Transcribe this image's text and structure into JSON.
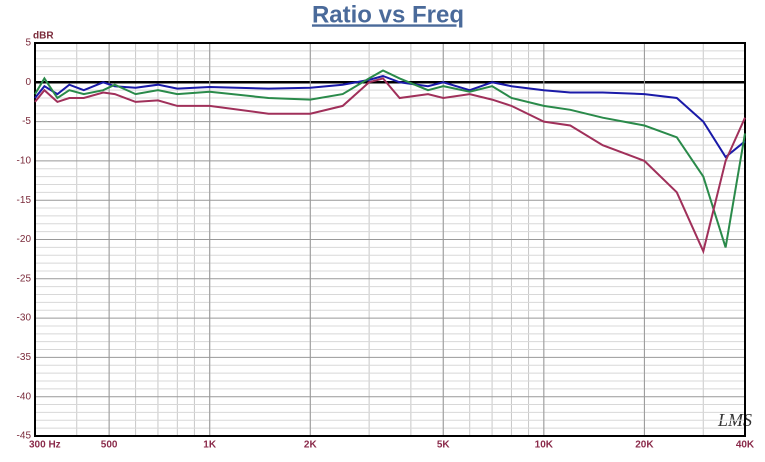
{
  "chart_data": {
    "type": "line",
    "title": "Ratio vs Freq",
    "y_label": "dBR",
    "watermark": "LMS",
    "log_x": true,
    "grid": true,
    "minor_grid": true,
    "xlim": [
      300,
      40000
    ],
    "ylim": [
      -45,
      5
    ],
    "xticks": [
      {
        "value": 300,
        "label": "300 Hz"
      },
      500,
      {
        "value": 1000,
        "label": "1K"
      },
      {
        "value": 2000,
        "label": "2K"
      },
      {
        "value": 5000,
        "label": "5K"
      },
      {
        "value": 10000,
        "label": "10K"
      },
      {
        "value": 20000,
        "label": "20K"
      },
      {
        "value": 40000,
        "label": "40K"
      }
    ],
    "yticks": [
      5,
      0,
      -5,
      -10,
      -15,
      -20,
      -25,
      -30,
      -35,
      -40,
      -45
    ],
    "x": [
      300,
      320,
      350,
      380,
      420,
      480,
      520,
      600,
      700,
      800,
      1000,
      1500,
      2000,
      2500,
      3000,
      3300,
      3700,
      4500,
      5000,
      6000,
      7000,
      8000,
      10000,
      12000,
      15000,
      20000,
      25000,
      30000,
      35000,
      40000
    ],
    "series": [
      {
        "color": "#1a1aa8",
        "values": [
          -2,
          -0.5,
          -1.5,
          -0.3,
          -1,
          0,
          -0.5,
          -0.7,
          -0.3,
          -0.8,
          -0.6,
          -0.8,
          -0.7,
          -0.3,
          0.3,
          0.8,
          0,
          -0.5,
          0,
          -1,
          0,
          -0.5,
          -1,
          -1.3,
          -1.3,
          -1.5,
          -2,
          -5,
          -9.5,
          -7.5
        ]
      },
      {
        "color": "#2a8a4a",
        "values": [
          -1.5,
          0.5,
          -2,
          -1,
          -1.5,
          -1,
          -0.3,
          -1.5,
          -1,
          -1.5,
          -1.2,
          -2,
          -2.2,
          -1.5,
          0.5,
          1.5,
          0.5,
          -1,
          -0.5,
          -1.2,
          -0.5,
          -2,
          -3,
          -3.5,
          -4.5,
          -5.5,
          -7,
          -12,
          -21,
          -6.5
        ]
      },
      {
        "color": "#a0305a",
        "values": [
          -2.5,
          -1,
          -2.5,
          -2,
          -2,
          -1.3,
          -1.5,
          -2.5,
          -2.3,
          -3,
          -3,
          -4,
          -4,
          -3,
          0,
          0.5,
          -2,
          -1.5,
          -2,
          -1.5,
          -2.2,
          -3,
          -5,
          -5.5,
          -8,
          -10,
          -14,
          -21.5,
          -10,
          -4.5
        ]
      }
    ]
  }
}
